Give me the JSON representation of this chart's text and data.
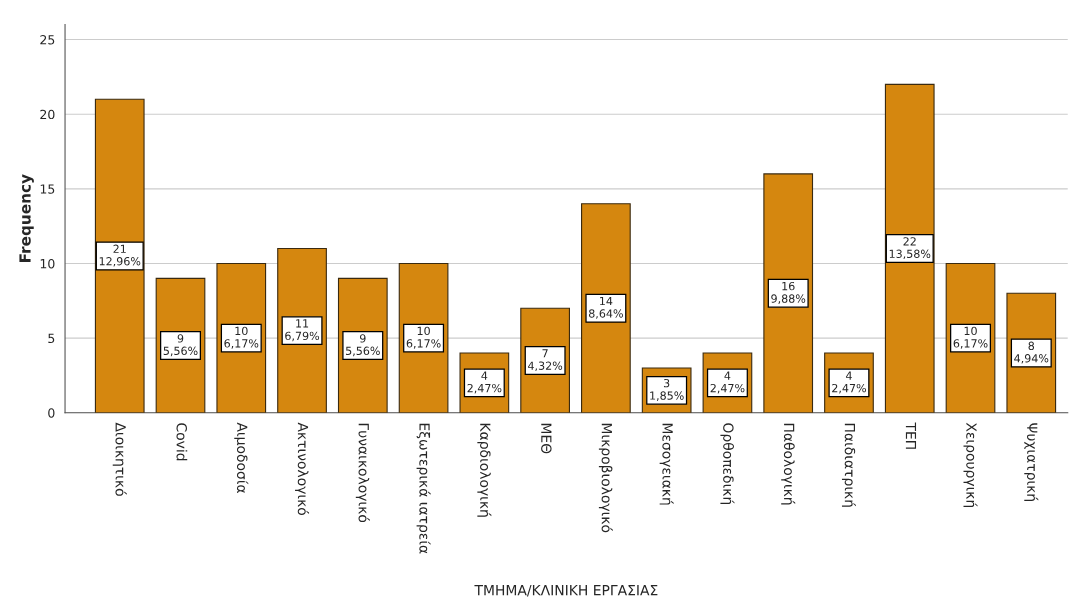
{
  "chart_data": {
    "type": "bar",
    "xlabel": "ΤΜΗΜΑ/ΚΛΙΝΙΚΗ ΕΡΓΑΣΙΑΣ",
    "ylabel": "Frequency",
    "categories": [
      "Διοικητικό",
      "Covid",
      "Αιμοδοσία",
      "Ακτινολογικό",
      "Γυναικολογικό",
      "Εξωτερικά ιατρεία",
      "Καρδιολογική",
      "ΜΕΘ",
      "Μικροβιολογικό",
      "Μεσογειακή",
      "Ορθοπεδική",
      "Παθολογική",
      "Παιδιατρική",
      "ΤΕΠ",
      "Χειρουργική",
      "Ψυχιατρική"
    ],
    "values": [
      21,
      9,
      10,
      11,
      9,
      10,
      4,
      7,
      14,
      3,
      4,
      16,
      4,
      22,
      10,
      8
    ],
    "value_labels": [
      "21\n12,96%",
      "9\n5,56%",
      "10\n6,17%",
      "11\n6,79%",
      "9\n5,56%",
      "10\n6,17%",
      "4\n2,47%",
      "7\n4,32%",
      "14\n8,64%",
      "3\n1,85%",
      "4\n2,47%",
      "16\n9,88%",
      "4\n2,47%",
      "22\n13,58%",
      "10\n6,17%",
      "8\n4,94%"
    ],
    "color": "#d5870f",
    "ylim": [
      0,
      26
    ],
    "yticks": [
      0,
      5,
      10,
      15,
      20,
      25
    ],
    "grid": "y",
    "legend": false
  }
}
